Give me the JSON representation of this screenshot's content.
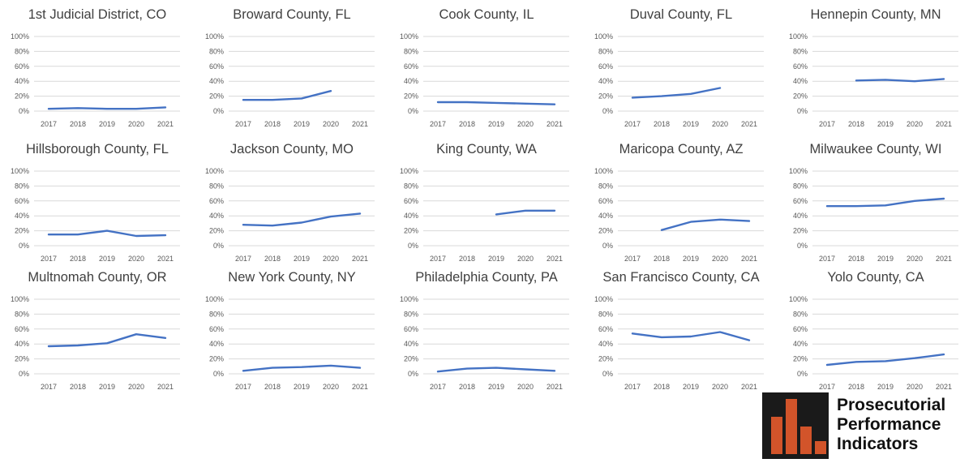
{
  "chart_data": [
    {
      "type": "line",
      "title": "1st Judicial District, CO",
      "x": [
        "2017",
        "2018",
        "2019",
        "2020",
        "2021"
      ],
      "yticks": [
        "100%",
        "80%",
        "60%",
        "40%",
        "20%",
        "0%"
      ],
      "ylim": [
        0,
        100
      ],
      "series": [
        {
          "values": [
            3,
            4,
            3,
            3,
            5
          ]
        }
      ]
    },
    {
      "type": "line",
      "title": "Broward County, FL",
      "x": [
        "2017",
        "2018",
        "2019",
        "2020",
        "2021"
      ],
      "yticks": [
        "100%",
        "80%",
        "60%",
        "40%",
        "20%",
        "0%"
      ],
      "ylim": [
        0,
        100
      ],
      "series": [
        {
          "values": [
            15,
            15,
            17,
            27,
            null
          ]
        }
      ]
    },
    {
      "type": "line",
      "title": "Cook County, IL",
      "x": [
        "2017",
        "2018",
        "2019",
        "2020",
        "2021"
      ],
      "yticks": [
        "100%",
        "80%",
        "60%",
        "40%",
        "20%",
        "0%"
      ],
      "ylim": [
        0,
        100
      ],
      "series": [
        {
          "values": [
            12,
            12,
            11,
            10,
            9
          ]
        }
      ]
    },
    {
      "type": "line",
      "title": "Duval County, FL",
      "x": [
        "2017",
        "2018",
        "2019",
        "2020",
        "2021"
      ],
      "yticks": [
        "100%",
        "80%",
        "60%",
        "40%",
        "20%",
        "0%"
      ],
      "ylim": [
        0,
        100
      ],
      "series": [
        {
          "values": [
            18,
            20,
            23,
            31,
            null
          ]
        }
      ]
    },
    {
      "type": "line",
      "title": "Hennepin County, MN",
      "x": [
        "2017",
        "2018",
        "2019",
        "2020",
        "2021"
      ],
      "yticks": [
        "100%",
        "80%",
        "60%",
        "40%",
        "20%",
        "0%"
      ],
      "ylim": [
        0,
        100
      ],
      "series": [
        {
          "values": [
            null,
            41,
            42,
            40,
            43
          ]
        }
      ]
    },
    {
      "type": "line",
      "title": "Hillsborough County, FL",
      "x": [
        "2017",
        "2018",
        "2019",
        "2020",
        "2021"
      ],
      "yticks": [
        "100%",
        "80%",
        "60%",
        "40%",
        "20%",
        "0%"
      ],
      "ylim": [
        0,
        100
      ],
      "series": [
        {
          "values": [
            15,
            15,
            20,
            13,
            14
          ]
        }
      ]
    },
    {
      "type": "line",
      "title": "Jackson County, MO",
      "x": [
        "2017",
        "2018",
        "2019",
        "2020",
        "2021"
      ],
      "yticks": [
        "100%",
        "80%",
        "60%",
        "40%",
        "20%",
        "0%"
      ],
      "ylim": [
        0,
        100
      ],
      "series": [
        {
          "values": [
            28,
            27,
            31,
            39,
            43
          ]
        }
      ]
    },
    {
      "type": "line",
      "title": "King County, WA",
      "x": [
        "2017",
        "2018",
        "2019",
        "2020",
        "2021"
      ],
      "yticks": [
        "100%",
        "80%",
        "60%",
        "40%",
        "20%",
        "0%"
      ],
      "ylim": [
        0,
        100
      ],
      "series": [
        {
          "values": [
            null,
            null,
            42,
            47,
            47
          ]
        }
      ]
    },
    {
      "type": "line",
      "title": "Maricopa County, AZ",
      "x": [
        "2017",
        "2018",
        "2019",
        "2020",
        "2021"
      ],
      "yticks": [
        "100%",
        "80%",
        "60%",
        "40%",
        "20%",
        "0%"
      ],
      "ylim": [
        0,
        100
      ],
      "series": [
        {
          "values": [
            null,
            21,
            32,
            35,
            33
          ]
        }
      ]
    },
    {
      "type": "line",
      "title": "Milwaukee County, WI",
      "x": [
        "2017",
        "2018",
        "2019",
        "2020",
        "2021"
      ],
      "yticks": [
        "100%",
        "80%",
        "60%",
        "40%",
        "20%",
        "0%"
      ],
      "ylim": [
        0,
        100
      ],
      "series": [
        {
          "values": [
            53,
            53,
            54,
            60,
            63
          ]
        }
      ]
    },
    {
      "type": "line",
      "title": "Multnomah County, OR",
      "x": [
        "2017",
        "2018",
        "2019",
        "2020",
        "2021"
      ],
      "yticks": [
        "100%",
        "80%",
        "60%",
        "40%",
        "20%",
        "0%"
      ],
      "ylim": [
        0,
        100
      ],
      "series": [
        {
          "values": [
            37,
            38,
            41,
            53,
            48
          ]
        }
      ]
    },
    {
      "type": "line",
      "title": "New York County, NY",
      "x": [
        "2017",
        "2018",
        "2019",
        "2020",
        "2021"
      ],
      "yticks": [
        "100%",
        "80%",
        "60%",
        "40%",
        "20%",
        "0%"
      ],
      "ylim": [
        0,
        100
      ],
      "series": [
        {
          "values": [
            4,
            8,
            9,
            11,
            8
          ]
        }
      ]
    },
    {
      "type": "line",
      "title": "Philadelphia County, PA",
      "x": [
        "2017",
        "2018",
        "2019",
        "2020",
        "2021"
      ],
      "yticks": [
        "100%",
        "80%",
        "60%",
        "40%",
        "20%",
        "0%"
      ],
      "ylim": [
        0,
        100
      ],
      "series": [
        {
          "values": [
            3,
            7,
            8,
            6,
            4
          ]
        }
      ]
    },
    {
      "type": "line",
      "title": "San Francisco County, CA",
      "x": [
        "2017",
        "2018",
        "2019",
        "2020",
        "2021"
      ],
      "yticks": [
        "100%",
        "80%",
        "60%",
        "40%",
        "20%",
        "0%"
      ],
      "ylim": [
        0,
        100
      ],
      "series": [
        {
          "values": [
            54,
            49,
            50,
            56,
            45
          ]
        }
      ]
    },
    {
      "type": "line",
      "title": "Yolo County, CA",
      "x": [
        "2017",
        "2018",
        "2019",
        "2020",
        "2021"
      ],
      "yticks": [
        "100%",
        "80%",
        "60%",
        "40%",
        "20%",
        "0%"
      ],
      "ylim": [
        0,
        100
      ],
      "series": [
        {
          "values": [
            12,
            16,
            17,
            21,
            26
          ]
        }
      ]
    }
  ],
  "colors": {
    "line": "#4472c4",
    "grid": "#d9d9d9",
    "logo_bars": "#d2542a",
    "logo_bg": "#1a1a1a"
  },
  "logo": {
    "icon": "bar-chart-logo-icon",
    "line1": "Prosecutorial",
    "line2": "Performance",
    "line3": "Indicators"
  }
}
